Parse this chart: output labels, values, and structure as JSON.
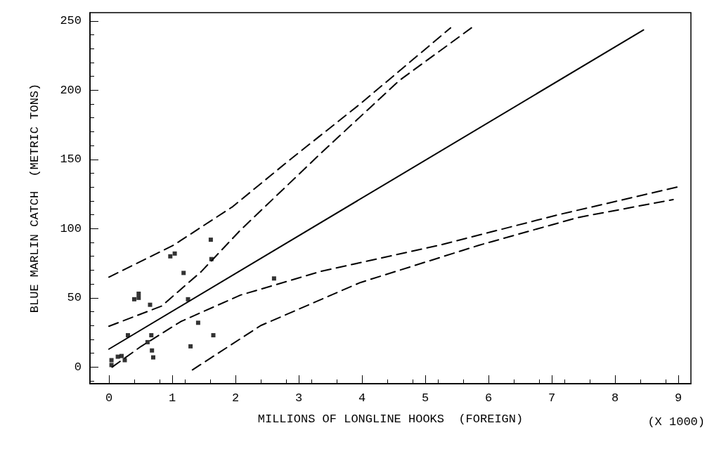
{
  "chart_data": {
    "type": "scatter",
    "xlabel": "MILLIONS OF LONGLINE HOOKS  (FOREIGN)",
    "ylabel": "BLUE MARLIN CATCH  (METRIC TONS)",
    "annotations": [
      "(X 1000)"
    ],
    "xlim": [
      -0.3,
      9.2
    ],
    "xticks": [
      0,
      1,
      2,
      3,
      4,
      5,
      6,
      7,
      8,
      9
    ],
    "ylim": [
      -12,
      256
    ],
    "yticks": [
      0,
      50,
      100,
      150,
      200,
      250
    ],
    "grid": false,
    "series": [
      {
        "marker": "square",
        "color": "#000000",
        "x": [
          1.61,
          0.97,
          1.04,
          1.62,
          1.18,
          2.61,
          0.47,
          0.47,
          0.4,
          0.65,
          1.25,
          1.41,
          1.65,
          0.3,
          0.67,
          0.61,
          0.68,
          1.29,
          0.7,
          0.04,
          0.04,
          0.14,
          0.2,
          0.25
        ],
        "values": [
          92,
          80,
          82,
          78,
          68,
          64,
          53,
          50,
          49,
          45,
          49,
          32,
          23,
          23,
          23,
          18,
          12,
          15,
          7,
          5,
          1.5,
          7.5,
          8,
          5
        ]
      },
      {
        "type": "line",
        "marker": "none",
        "line_style": "solid",
        "color": "#000000",
        "x": [
          0,
          8.45
        ],
        "values": [
          13,
          243.5
        ]
      },
      {
        "type": "line",
        "marker": "none",
        "line_style": "dashed",
        "color": "#000000",
        "x": [
          0,
          1.02,
          1.96,
          2.84,
          3.97,
          5.4
        ],
        "values": [
          65,
          88,
          116,
          149,
          190,
          245
        ]
      },
      {
        "type": "line",
        "marker": "none",
        "line_style": "dashed",
        "color": "#000000",
        "x": [
          0,
          0.83,
          1.46,
          2.08,
          3.34,
          4.59,
          5.73
        ],
        "values": [
          29.5,
          44,
          69,
          99,
          154,
          207,
          245
        ]
      },
      {
        "type": "line",
        "marker": "none",
        "line_style": "dashed",
        "color": "#000000",
        "x": [
          0.05,
          0.51,
          1.14,
          2.08,
          3.34,
          5.22,
          7.1,
          8.98
        ],
        "values": [
          0,
          15,
          33,
          52,
          69,
          88,
          110,
          130
        ]
      },
      {
        "type": "line",
        "marker": "none",
        "line_style": "dashed",
        "color": "#000000",
        "x": [
          1.32,
          2.4,
          3.97,
          5.85,
          7.41,
          8.92
        ],
        "values": [
          -2,
          30,
          61,
          88,
          108,
          121
        ]
      }
    ]
  }
}
